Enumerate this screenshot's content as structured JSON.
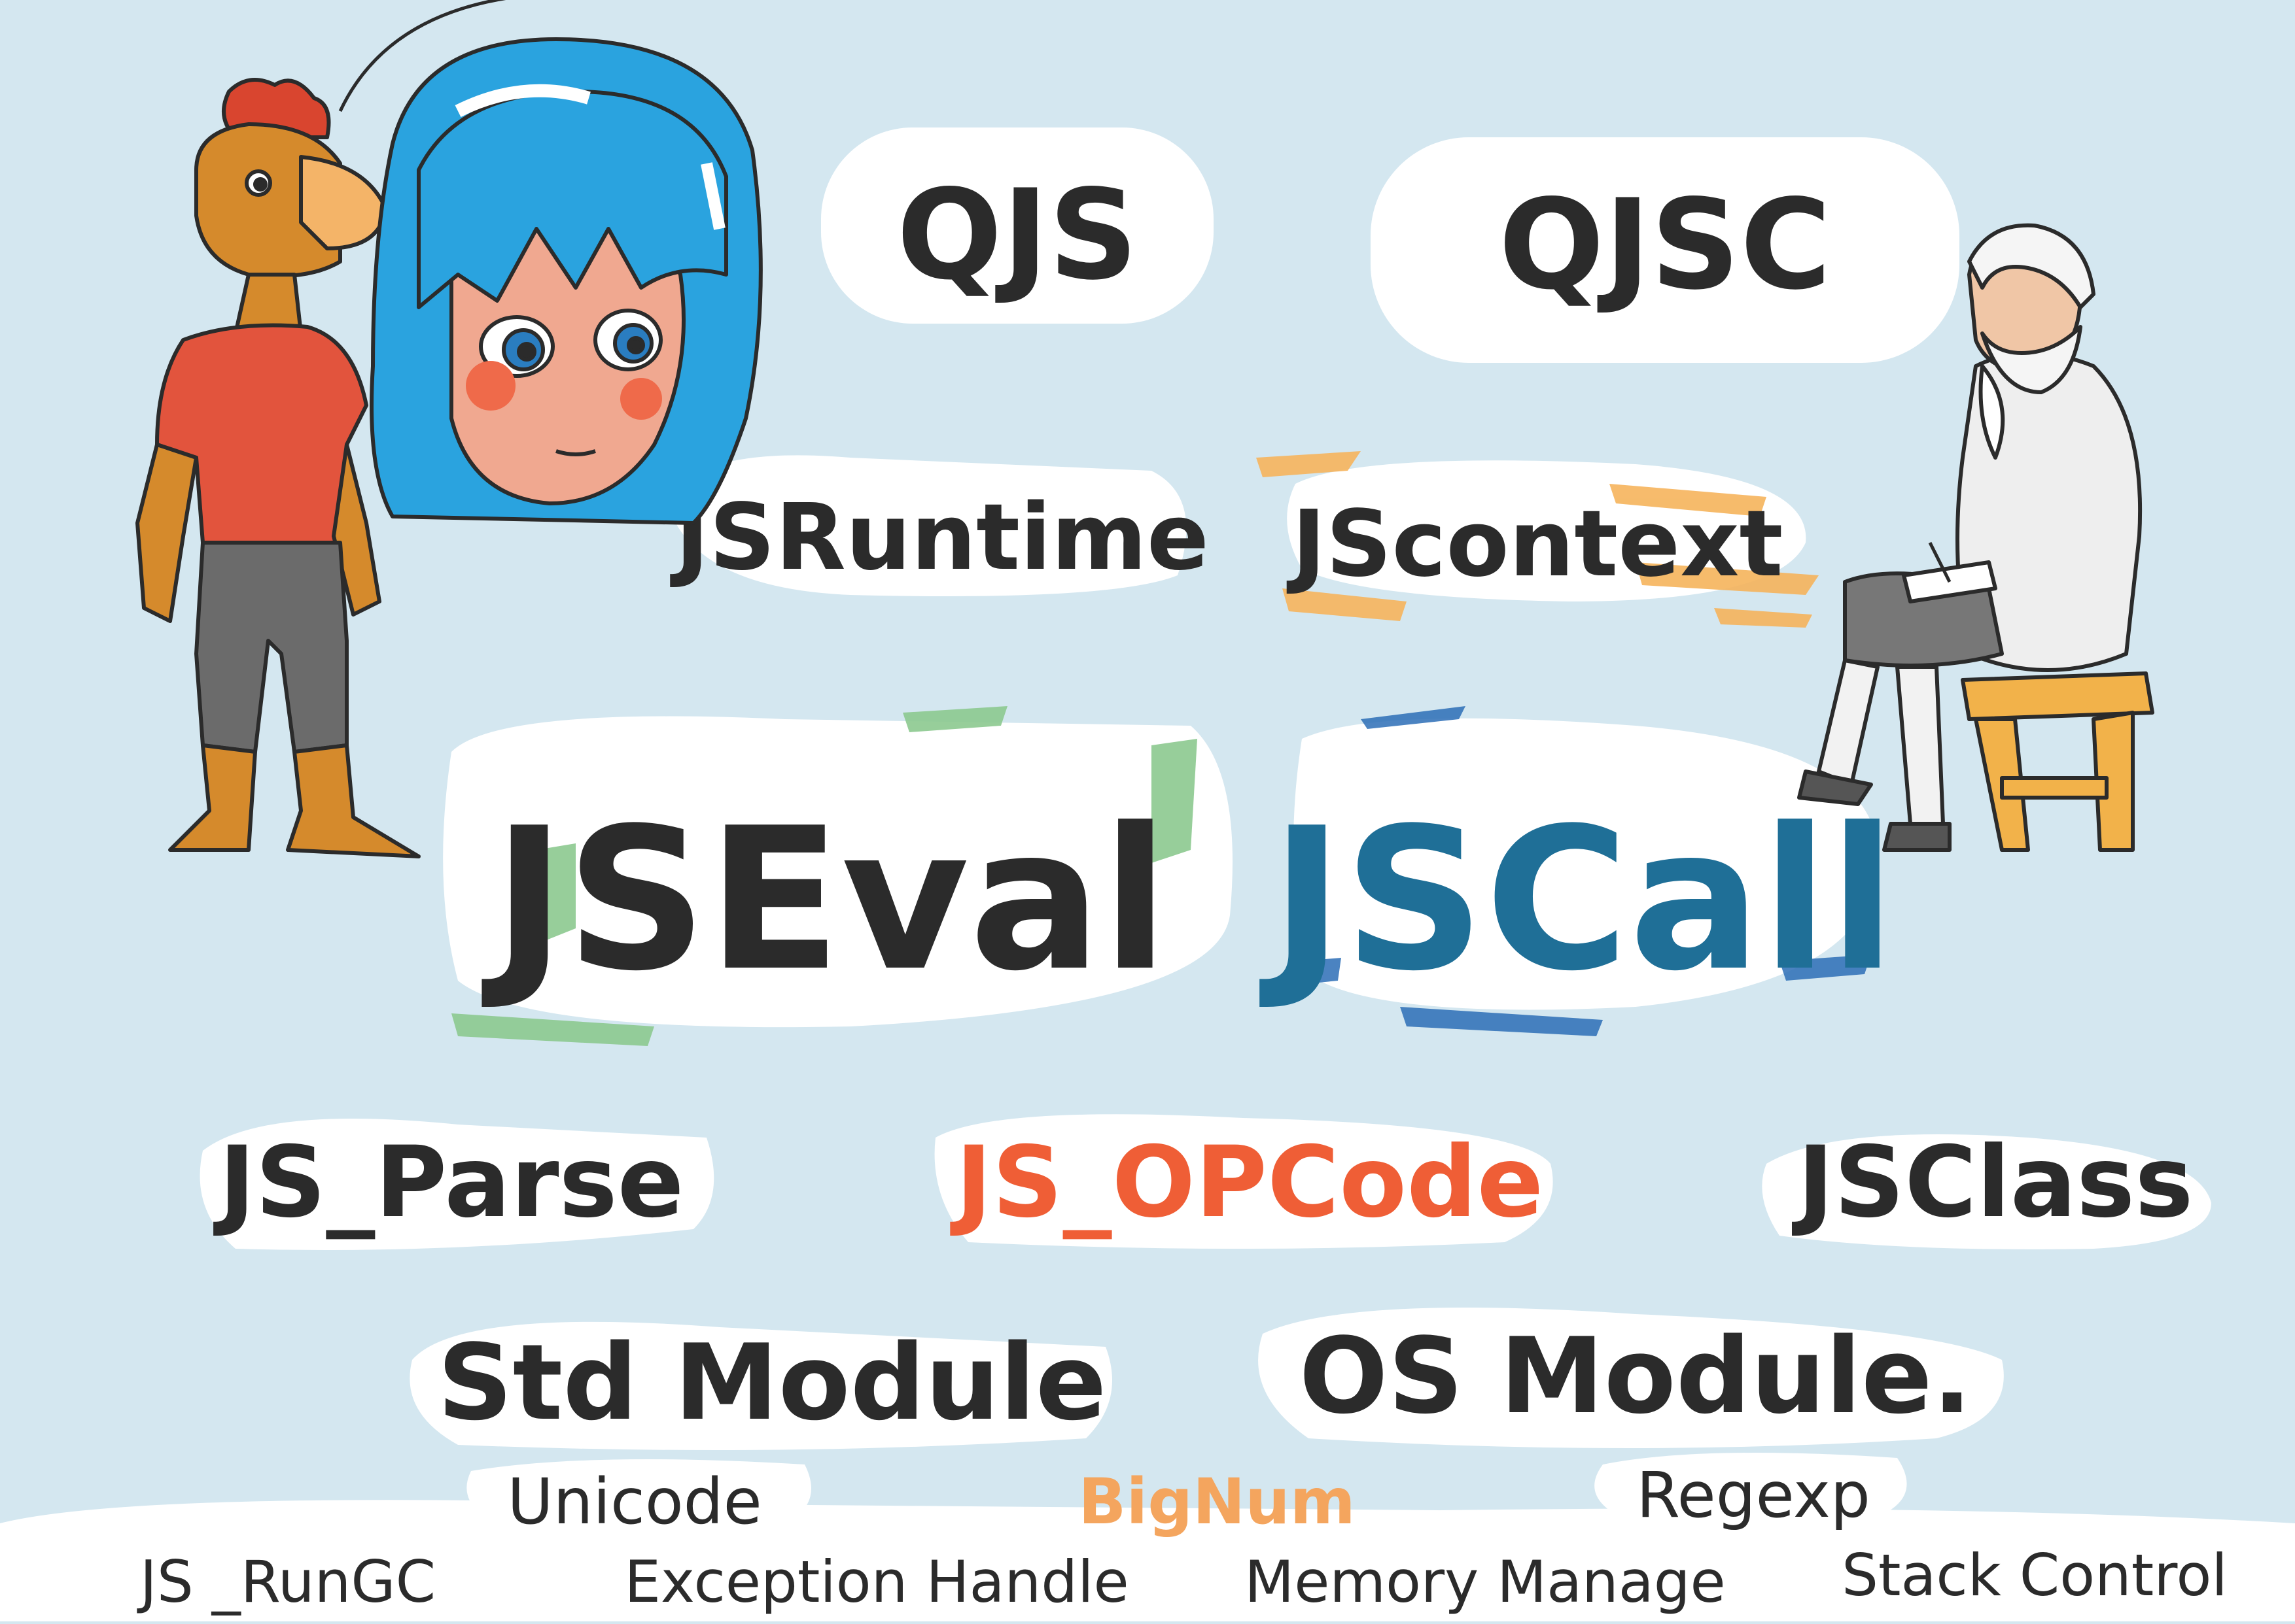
{
  "colors": {
    "background": "#d4e7f0",
    "highlight_white": "#ffffff",
    "text_dark": "#2b2b2b",
    "jscall_blue": "#1f6f97",
    "opcode_orange": "#ef5e36",
    "bignum_orange": "#f4a55e",
    "jseval_green": "#8cc98f",
    "jscall_stroke_blue": "#2b6db6",
    "jscontext_orange": "#f6b45c"
  },
  "labels": {
    "qjs": "QJS",
    "qjsc": "QJSC",
    "jsruntime": "JSRuntime",
    "jscontext": "JScontext",
    "jseval": "JSEval",
    "jscall": "JSCall",
    "js_parse": "JS_Parse",
    "js_opcode": "JS_OPCode",
    "jsclass": "JSClass",
    "std_module": "Std Module",
    "os_module": "OS Module.",
    "unicode": "Unicode",
    "bignum": "BigNum",
    "regexp": "Regexp",
    "js_rungc": "JS _RunGC",
    "exception_handle": "Exception Handle",
    "memory_manage": "Memory Manage",
    "stack_control": "Stack Control"
  },
  "characters": {
    "rooster": "rooster-man-figure",
    "girl": "blue-haired-girl-figure",
    "old_man": "old-man-writing-figure"
  }
}
